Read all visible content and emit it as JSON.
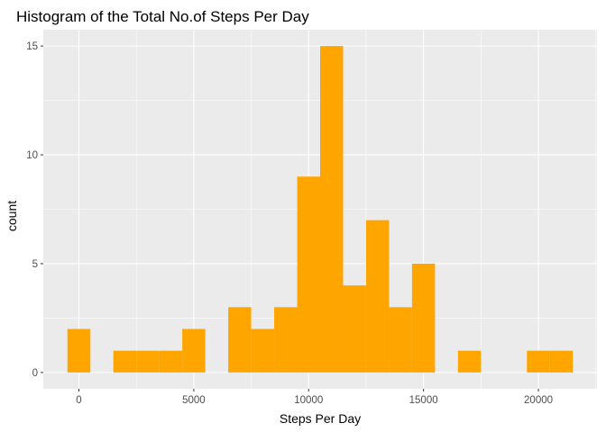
{
  "chart_data": {
    "type": "bar",
    "title": "Histogram of the Total No.of Steps Per Day",
    "xlabel": "Steps Per Day",
    "ylabel": "count",
    "binwidth": 1000,
    "bins": [
      {
        "center": 0,
        "count": 2
      },
      {
        "center": 1000,
        "count": 0
      },
      {
        "center": 2000,
        "count": 1
      },
      {
        "center": 3000,
        "count": 1
      },
      {
        "center": 4000,
        "count": 1
      },
      {
        "center": 5000,
        "count": 2
      },
      {
        "center": 6000,
        "count": 0
      },
      {
        "center": 7000,
        "count": 3
      },
      {
        "center": 8000,
        "count": 2
      },
      {
        "center": 9000,
        "count": 3
      },
      {
        "center": 10000,
        "count": 9
      },
      {
        "center": 11000,
        "count": 15
      },
      {
        "center": 12000,
        "count": 4
      },
      {
        "center": 13000,
        "count": 7
      },
      {
        "center": 14000,
        "count": 3
      },
      {
        "center": 15000,
        "count": 5
      },
      {
        "center": 16000,
        "count": 0
      },
      {
        "center": 17000,
        "count": 1
      },
      {
        "center": 18000,
        "count": 0
      },
      {
        "center": 19000,
        "count": 0
      },
      {
        "center": 20000,
        "count": 1
      },
      {
        "center": 21000,
        "count": 1
      }
    ],
    "xticks": [
      0,
      5000,
      10000,
      15000,
      20000
    ],
    "xtick_labels": [
      "0",
      "5000",
      "10000",
      "15000",
      "20000"
    ],
    "yticks": [
      0,
      5,
      10,
      15
    ],
    "ytick_labels": [
      "0",
      "5",
      "10",
      "15"
    ],
    "xlim": [
      -1550,
      22550
    ],
    "ylim": [
      -0.75,
      15.75
    ],
    "grid": true,
    "bar_color": "#FFA500",
    "panel_color": "#EBEBEB",
    "grid_color": "#FFFFFF"
  }
}
